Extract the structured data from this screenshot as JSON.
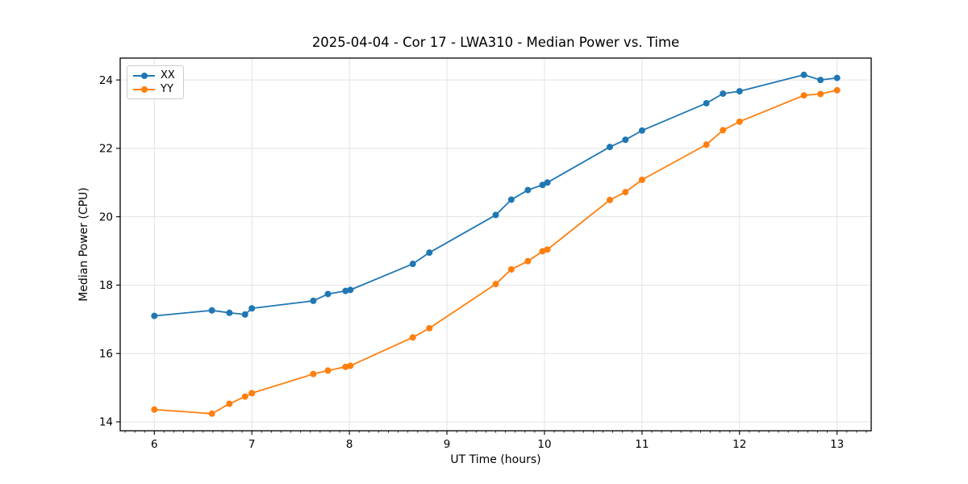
{
  "chart_data": {
    "type": "line",
    "title": "2025-04-04 - Cor 17 - LWA310 - Median Power vs. Time",
    "xlabel": "UT Time (hours)",
    "ylabel": "Median Power (CPU)",
    "xlim": [
      5.65,
      13.35
    ],
    "ylim": [
      13.74,
      24.64
    ],
    "x_ticks": [
      6,
      7,
      8,
      9,
      10,
      11,
      12,
      13
    ],
    "y_ticks": [
      14,
      16,
      18,
      20,
      22,
      24
    ],
    "x_minor_step": 0.1,
    "grid": true,
    "legend_position": "upper left",
    "x": [
      6.0,
      6.59,
      6.77,
      6.93,
      7.0,
      7.63,
      7.78,
      7.96,
      8.01,
      8.65,
      8.82,
      9.5,
      9.66,
      9.83,
      9.98,
      10.03,
      10.67,
      10.83,
      11.0,
      11.66,
      11.83,
      12.0,
      12.66,
      12.83,
      13.0
    ],
    "series": [
      {
        "name": "XX",
        "color": "#1f77b4",
        "values": [
          17.1,
          17.26,
          17.19,
          17.14,
          17.32,
          17.54,
          17.74,
          17.83,
          17.86,
          18.62,
          18.95,
          20.05,
          20.5,
          20.78,
          20.93,
          21.0,
          22.04,
          22.25,
          22.52,
          23.32,
          23.6,
          23.67,
          24.15,
          24.0,
          24.06
        ]
      },
      {
        "name": "YY",
        "color": "#ff7f0e",
        "values": [
          14.36,
          14.24,
          14.53,
          14.74,
          14.84,
          15.4,
          15.5,
          15.61,
          15.64,
          16.47,
          16.74,
          18.03,
          18.46,
          18.7,
          18.99,
          19.04,
          20.49,
          20.72,
          21.08,
          22.11,
          22.53,
          22.78,
          23.55,
          23.59,
          23.7
        ]
      }
    ],
    "colors": {
      "background": "#ffffff",
      "grid": "#e3e3e3",
      "spine": "#000000",
      "text": "#000000"
    }
  }
}
